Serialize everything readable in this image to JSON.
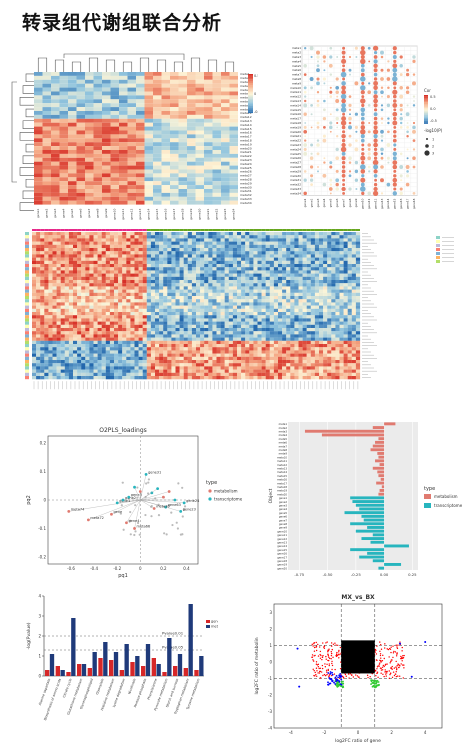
{
  "page_title": "转录组代谢组联合分析",
  "colors": {
    "red": "#d7301f",
    "orange": "#f4a582",
    "yellow": "#fddbc7",
    "pale": "#f7f7f7",
    "lightblue": "#92c5de",
    "blue": "#2166ac",
    "metabolism": "#e07a70",
    "transcriptome": "#27b5be",
    "bar_gene": "#d62728",
    "bar_meta": "#1f3a7a",
    "volcano_black": "#000000",
    "volcano_red": "#ff0000",
    "volcano_green": "#33cc33",
    "volcano_blue": "#0000ff"
  },
  "chart_data": [
    {
      "type": "heatmap",
      "panel": "correlation-heatmap",
      "legend_ticks": [
        "0.5",
        "0",
        "-0.5"
      ]
    },
    {
      "type": "scatter",
      "panel": "bubble-correlation",
      "legend_title": "Cor",
      "legend_ticks": [
        "0.5",
        "0.0",
        "-0.5"
      ],
      "size_title": "-log10(P)",
      "size_ticks": [
        "1",
        "2",
        "3"
      ]
    },
    {
      "type": "heatmap",
      "panel": "cluster-heatmap"
    },
    {
      "type": "scatter",
      "panel": "o2pls-loadings",
      "title": "O2PLS_loadings",
      "xlabel": "pq1",
      "ylabel": "pq2",
      "xlim": [
        -0.8,
        0.5
      ],
      "ylim": [
        -0.45,
        0.45
      ],
      "x_ticks": [
        "-0.6",
        "-0.4",
        "-0.2",
        "0",
        "0.2",
        "0.4"
      ],
      "y_ticks": [
        "0.2",
        "0.1",
        "0",
        "-0.1",
        "-0.2"
      ],
      "legend_title": "type",
      "legend": [
        "metabolism",
        "transcriptome"
      ],
      "points": [
        {
          "x": 0.05,
          "y": 0.18,
          "t": "transcriptome",
          "label": "gene31"
        },
        {
          "x": -0.62,
          "y": -0.08,
          "t": "metabolism",
          "label": "meta74"
        },
        {
          "x": -0.45,
          "y": -0.14,
          "t": "metabolism",
          "label": "meta72"
        },
        {
          "x": -0.2,
          "y": -0.02,
          "t": "transcriptome",
          "label": "gene1"
        },
        {
          "x": -0.15,
          "y": 0.0,
          "t": "transcriptome",
          "label": "gene2"
        },
        {
          "x": -0.1,
          "y": 0.02,
          "t": "transcriptome",
          "label": "gene3"
        },
        {
          "x": -0.25,
          "y": -0.1,
          "t": "metabolism",
          "label": "gene"
        },
        {
          "x": 0.22,
          "y": -0.05,
          "t": "transcriptome",
          "label": "gene63"
        },
        {
          "x": 0.38,
          "y": -0.02,
          "t": "transcriptome",
          "label": "gene24"
        },
        {
          "x": 0.35,
          "y": -0.08,
          "t": "transcriptome",
          "label": "gene23"
        },
        {
          "x": 0.12,
          "y": -0.06,
          "t": "metabolism",
          "label": "meta30"
        },
        {
          "x": -0.05,
          "y": -0.2,
          "t": "metabolism",
          "label": "meta66"
        },
        {
          "x": -0.12,
          "y": -0.16,
          "t": "metabolism",
          "label": "gene4"
        },
        {
          "x": 0.1,
          "y": 0.05,
          "t": "transcriptome",
          "label": ""
        },
        {
          "x": 0.15,
          "y": 0.08,
          "t": "transcriptome",
          "label": ""
        },
        {
          "x": 0.2,
          "y": 0.02,
          "t": "metabolism",
          "label": ""
        },
        {
          "x": 0.25,
          "y": 0.06,
          "t": "metabolism",
          "label": ""
        },
        {
          "x": 0.3,
          "y": 0.0,
          "t": "transcriptome",
          "label": ""
        },
        {
          "x": 0.0,
          "y": 0.06,
          "t": "metabolism",
          "label": ""
        },
        {
          "x": -0.05,
          "y": 0.09,
          "t": "transcriptome",
          "label": ""
        }
      ]
    },
    {
      "type": "bar",
      "panel": "o2pls-bar",
      "ylabel": "Object",
      "x_ticks": [
        "-0.75",
        "-0.50",
        "-0.25",
        "0.00",
        "0.25"
      ],
      "xlim": [
        -0.85,
        0.3
      ],
      "legend_title": "type",
      "legend": [
        "metabolism",
        "transcriptome"
      ],
      "categories": [
        "meta1",
        "meta2",
        "meta3",
        "meta4",
        "meta5",
        "meta6",
        "meta7",
        "meta8",
        "meta9",
        "meta10",
        "meta11",
        "meta12",
        "meta13",
        "meta14",
        "meta15",
        "meta16",
        "meta17",
        "meta18",
        "meta19",
        "meta20",
        "gene1",
        "gene2",
        "gene3",
        "gene4",
        "gene5",
        "gene6",
        "gene7",
        "gene8",
        "gene9",
        "gene10",
        "gene11",
        "gene12",
        "gene13",
        "gene14",
        "gene15",
        "gene16",
        "gene17",
        "gene18",
        "gene19",
        "gene20"
      ],
      "values": [
        0.1,
        -0.1,
        -0.7,
        -0.55,
        -0.05,
        -0.08,
        -0.1,
        -0.12,
        -0.06,
        -0.05,
        -0.08,
        -0.04,
        -0.1,
        -0.06,
        -0.05,
        -0.03,
        -0.07,
        -0.02,
        -0.04,
        -0.05,
        -0.3,
        -0.28,
        -0.25,
        -0.22,
        -0.35,
        -0.2,
        -0.18,
        -0.3,
        -0.15,
        -0.25,
        -0.1,
        -0.2,
        -0.12,
        0.22,
        -0.3,
        -0.15,
        -0.22,
        -0.1,
        0.15,
        -0.05
      ],
      "types": [
        "metabolism",
        "metabolism",
        "metabolism",
        "metabolism",
        "metabolism",
        "metabolism",
        "metabolism",
        "metabolism",
        "metabolism",
        "metabolism",
        "metabolism",
        "metabolism",
        "metabolism",
        "metabolism",
        "metabolism",
        "metabolism",
        "metabolism",
        "metabolism",
        "metabolism",
        "metabolism",
        "transcriptome",
        "transcriptome",
        "transcriptome",
        "transcriptome",
        "transcriptome",
        "transcriptome",
        "transcriptome",
        "transcriptome",
        "transcriptome",
        "transcriptome",
        "transcriptome",
        "transcriptome",
        "transcriptome",
        "transcriptome",
        "transcriptome",
        "transcriptome",
        "transcriptome",
        "transcriptome",
        "transcriptome",
        "transcriptome"
      ]
    },
    {
      "type": "bar",
      "panel": "kegg-bar",
      "ylabel": "-log(Pvalue)",
      "ylim": [
        0,
        4
      ],
      "y_ticks": [
        "0",
        "1",
        "2",
        "3",
        "4"
      ],
      "legend": [
        "gene",
        "meta"
      ],
      "threshold_labels": [
        "Pvalue0.01",
        "Pvalue0.05"
      ],
      "threshold_values": [
        2.0,
        1.3
      ],
      "categories": [
        "Alanine aspartate",
        "Biosynthesis of amino acids",
        "Citrate cycle",
        "Glutathione metabolism",
        "Glycerophospholipid",
        "Glyoxylate",
        "Histidine metabolism",
        "Lysine degradation",
        "Nicotinate",
        "Pentose phosphate",
        "Phenylalanine",
        "Pyruvate metabolism",
        "Starch and sucrose",
        "Tryptophan metabolism",
        "Tyrosine metabolism"
      ],
      "series": [
        {
          "name": "gene",
          "values": [
            0.3,
            0.5,
            0.2,
            0.6,
            0.4,
            0.9,
            0.8,
            0.3,
            0.7,
            0.5,
            0.9,
            0.2,
            0.5,
            0.4,
            0.3
          ]
        },
        {
          "name": "meta",
          "values": [
            1.1,
            0.3,
            2.9,
            0.6,
            1.2,
            1.7,
            1.2,
            1.6,
            1.0,
            1.6,
            0.6,
            1.9,
            1.1,
            3.6,
            1.0
          ]
        }
      ]
    },
    {
      "type": "scatter",
      "panel": "volcano",
      "title": "MX_vs_BX",
      "xlabel": "log2FC ratio of gene",
      "ylabel": "log2FC ratio of metabolin",
      "xlim": [
        -5,
        5
      ],
      "ylim": [
        -4,
        3.5
      ],
      "x_ticks": [
        "-4",
        "-2",
        "0",
        "2",
        "4"
      ],
      "y_ticks": [
        "-4",
        "-3",
        "-2",
        "-1",
        "0",
        "1",
        "2",
        "3"
      ]
    }
  ]
}
